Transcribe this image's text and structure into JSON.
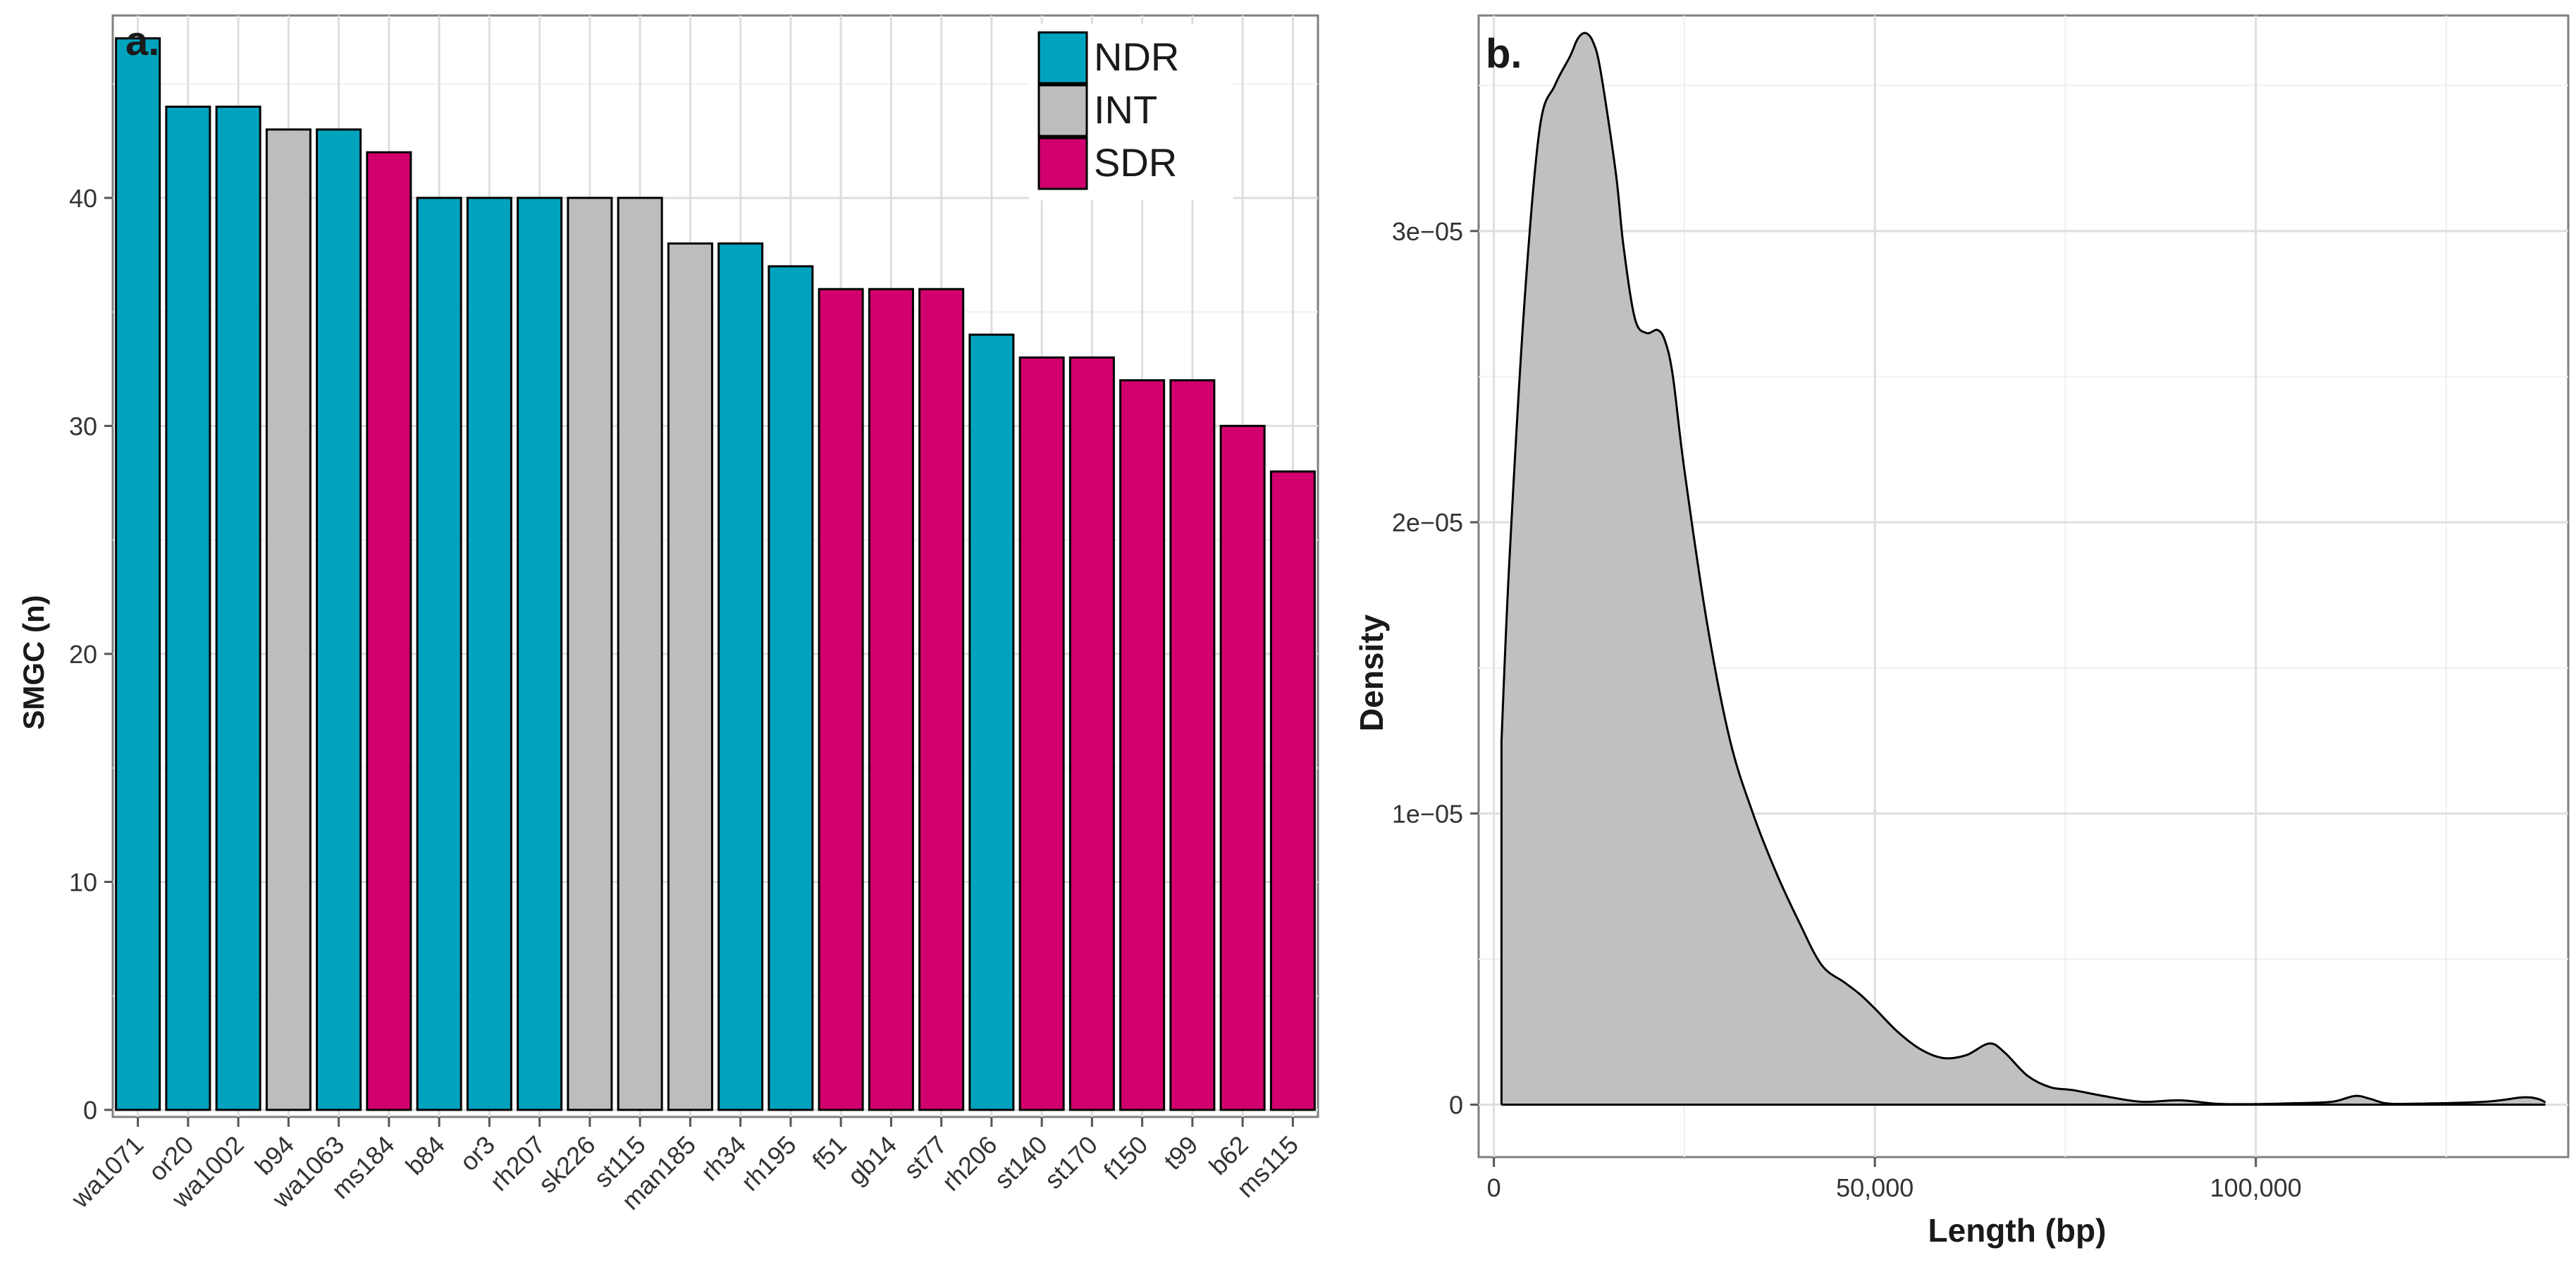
{
  "chart_data": [
    {
      "type": "bar",
      "panel_label": "a.",
      "xlabel": "",
      "ylabel": "SMGC (n)",
      "ylim": [
        0,
        48
      ],
      "yticks": [
        0,
        10,
        20,
        30,
        40
      ],
      "grid": true,
      "legend_position": "top-right",
      "legend": [
        {
          "name": "NDR",
          "color": "#00A3BD"
        },
        {
          "name": "INT",
          "color": "#BDBDBD"
        },
        {
          "name": "SDR",
          "color": "#D2006E"
        }
      ],
      "categories": [
        "wa1071",
        "or20",
        "wa1002",
        "b94",
        "wa1063",
        "ms184",
        "b84",
        "or3",
        "rh207",
        "sk226",
        "st115",
        "man185",
        "rh34",
        "rh195",
        "f51",
        "gb14",
        "st77",
        "rh206",
        "st140",
        "st170",
        "f150",
        "t99",
        "b62",
        "ms115"
      ],
      "values": [
        47,
        44,
        44,
        43,
        43,
        42,
        40,
        40,
        40,
        40,
        40,
        38,
        38,
        37,
        36,
        36,
        36,
        34,
        33,
        33,
        32,
        32,
        30,
        28
      ],
      "groups": [
        "NDR",
        "NDR",
        "NDR",
        "INT",
        "NDR",
        "SDR",
        "NDR",
        "NDR",
        "NDR",
        "INT",
        "INT",
        "INT",
        "NDR",
        "NDR",
        "SDR",
        "SDR",
        "SDR",
        "NDR",
        "SDR",
        "SDR",
        "SDR",
        "SDR",
        "SDR",
        "SDR"
      ]
    },
    {
      "type": "area",
      "panel_label": "b.",
      "xlabel": "Length (bp)",
      "ylabel": "Density",
      "xlim": [
        -2000,
        141000
      ],
      "ylim": [
        -1.8e-06,
        3.74e-05
      ],
      "xticks": [
        0,
        50000,
        100000
      ],
      "xtick_labels": [
        "0",
        "50,000",
        "100,000"
      ],
      "yticks": [
        0,
        1e-05,
        2e-05,
        3e-05
      ],
      "ytick_labels": [
        "0",
        "1e−05",
        "2e−05",
        "3e−05"
      ],
      "grid": true,
      "fill_color": "#C0C0C0",
      "x": [
        1000,
        2000,
        4000,
        6000,
        8000,
        10000,
        11000,
        12000,
        13000,
        14000,
        16000,
        17000,
        18500,
        20000,
        21500,
        22500,
        23500,
        25000,
        28000,
        31000,
        34000,
        37000,
        40000,
        43000,
        46000,
        48000,
        50000,
        53000,
        56000,
        59000,
        62000,
        65000,
        67000,
        70000,
        73000,
        76000,
        80000,
        85000,
        90000,
        95000,
        100000,
        105000,
        110000,
        113000,
        115000,
        117000,
        120000,
        130000,
        135000,
        137000,
        138000
      ],
      "y": [
        1.25e-05,
        1.85e-05,
        2.75e-05,
        3.35e-05,
        3.5e-05,
        3.6e-05,
        3.66e-05,
        3.68e-05,
        3.65e-05,
        3.55e-05,
        3.2e-05,
        2.95e-05,
        2.7e-05,
        2.65e-05,
        2.66e-05,
        2.62e-05,
        2.5e-05,
        2.18e-05,
        1.65e-05,
        1.25e-05,
        1e-05,
        8e-06,
        6.3e-06,
        4.8e-06,
        4.2e-06,
        3.8e-06,
        3.3e-06,
        2.5e-06,
        1.9e-06,
        1.6e-06,
        1.7e-06,
        2.1e-06,
        1.8e-06,
        1e-06,
        6e-07,
        5e-07,
        3e-07,
        1e-07,
        1.5e-07,
        3e-08,
        2e-08,
        5e-08,
        1e-07,
        3e-07,
        2e-07,
        5e-08,
        3e-08,
        1e-07,
        2.5e-07,
        2e-07,
        8e-08
      ]
    }
  ]
}
